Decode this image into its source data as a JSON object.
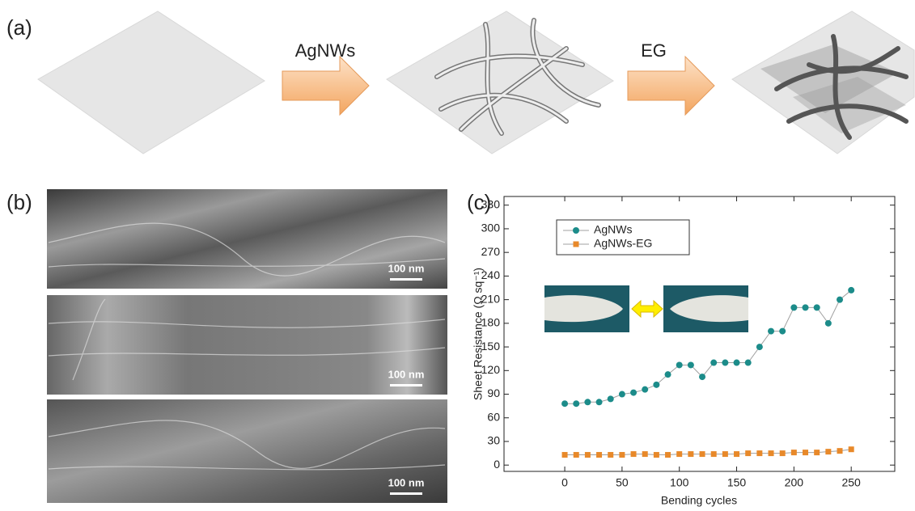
{
  "panel_labels": [
    "(a)",
    "(b)",
    "(c)"
  ],
  "schematic": {
    "step1_label": "AgNWs",
    "step2_label": "EG"
  },
  "sem": {
    "scale_bars": [
      "100 nm",
      "100 nm",
      "100 nm"
    ]
  },
  "chart_data": {
    "type": "line",
    "x_label": "Bending cycles",
    "y_label": "Sheet Resistance (Ω sq⁻¹)",
    "x": [
      0,
      10,
      20,
      30,
      40,
      50,
      60,
      70,
      80,
      90,
      100,
      110,
      120,
      130,
      140,
      150,
      160,
      170,
      180,
      190,
      200,
      210,
      220,
      230,
      240,
      250
    ],
    "series": [
      {
        "name": "AgNWs",
        "color": "#1c8c8a",
        "marker": "circle",
        "values": [
          78,
          78,
          80,
          80,
          84,
          90,
          92,
          96,
          102,
          115,
          127,
          127,
          112,
          130,
          130,
          130,
          130,
          150,
          170,
          170,
          200,
          200,
          200,
          180,
          210,
          222
        ]
      },
      {
        "name": "AgNWs-EG",
        "color": "#e8892a",
        "marker": "square",
        "values": [
          13,
          13,
          13,
          13,
          13,
          13,
          14,
          14,
          13,
          13,
          14,
          14,
          14,
          14,
          14,
          14,
          15,
          15,
          15,
          15,
          16,
          16,
          16,
          17,
          18,
          20
        ]
      }
    ],
    "line_color": "#a0a0a0",
    "xlim": [
      -53,
      288
    ],
    "ylim": [
      -8,
      341
    ],
    "xticks": [
      0,
      50,
      100,
      150,
      200,
      250
    ],
    "yticks": [
      0,
      30,
      60,
      90,
      120,
      150,
      180,
      210,
      240,
      270,
      300,
      330
    ],
    "legend": "upper left"
  }
}
